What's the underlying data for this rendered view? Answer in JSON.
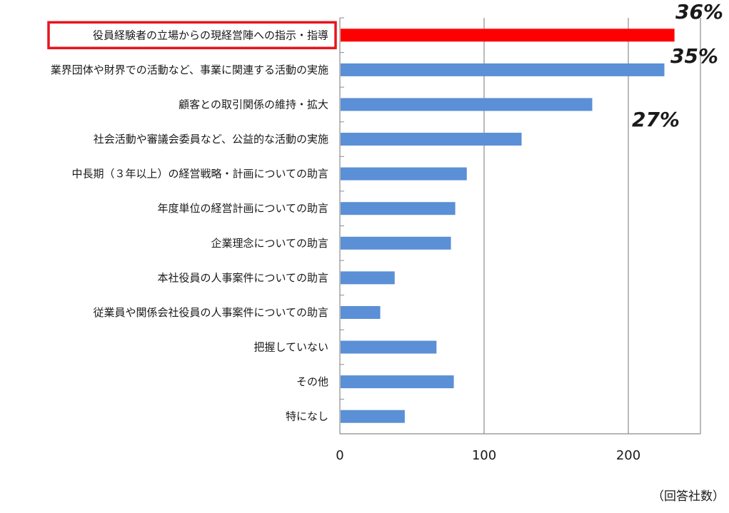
{
  "chart_data": {
    "type": "bar",
    "orientation": "horizontal",
    "categories": [
      "役員経験者の立場からの現経営陣への指示・指導",
      "業界団体や財界での活動など、事業に関連する活動の実施",
      "顧客との取引関係の維持・拡大",
      "社会活動や審議会委員など、公益的な活動の実施",
      "中長期（３年以上）の経営戦略・計画についての助言",
      "年度単位の経営計画についての助言",
      "企業理念についての助言",
      "本社役員の人事案件についての助言",
      "従業員や関係会社役員の人事案件についての助言",
      "把握していない",
      "その他",
      "特になし"
    ],
    "values": [
      232,
      225,
      175,
      126,
      88,
      80,
      77,
      38,
      28,
      67,
      79,
      45
    ],
    "highlight_index": 0,
    "colors": {
      "bar": "#5B8FD6",
      "highlight_bar": "#FF0000",
      "highlight_box": "#E8141E",
      "grid": "#8c8c8c",
      "axis": "#8c8c8c"
    },
    "xlim": [
      0,
      250
    ],
    "xticks": [
      0,
      100,
      200
    ],
    "xtick_labels": [
      "0",
      "100",
      "200"
    ],
    "gridlines": "vertical at 100 and 200",
    "xlabel": "（回答社数）",
    "annotations": [
      {
        "text": "36%",
        "series_index": 0
      },
      {
        "text": "35%",
        "series_index": 1
      },
      {
        "text": "27%",
        "series_index": 2
      }
    ]
  }
}
